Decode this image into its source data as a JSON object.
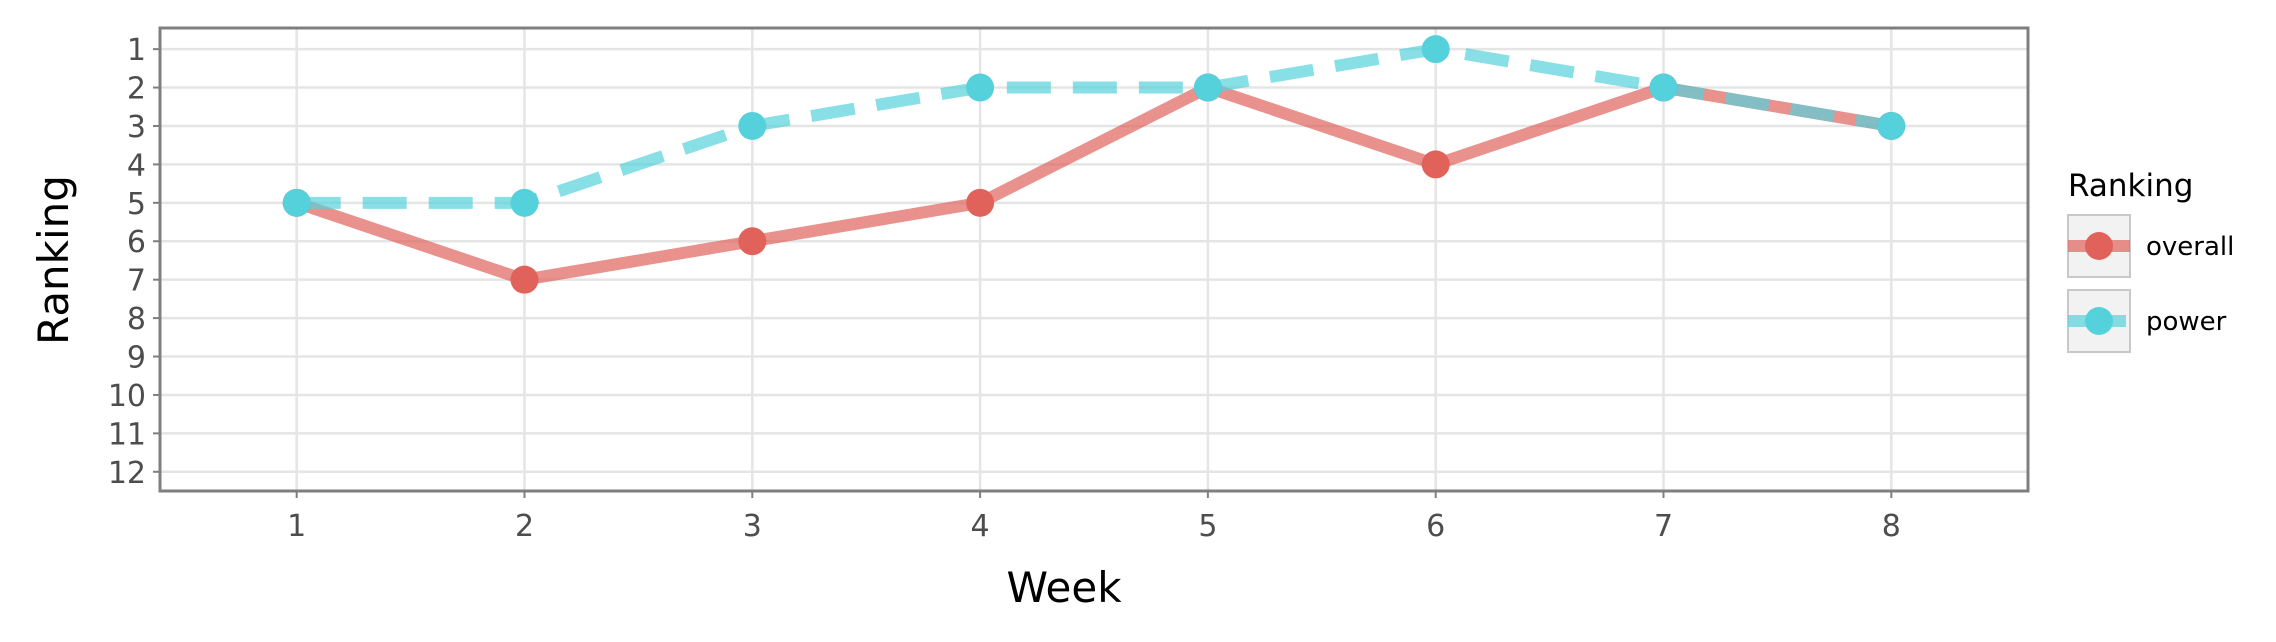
{
  "chart_data": {
    "type": "line",
    "xlabel": "Week",
    "ylabel": "Ranking",
    "x": [
      1,
      2,
      3,
      4,
      5,
      6,
      7,
      8
    ],
    "x_ticks": [
      1,
      2,
      3,
      4,
      5,
      6,
      7,
      8
    ],
    "xlim": [
      0.4,
      8.6
    ],
    "y_ticks": [
      1,
      2,
      3,
      4,
      5,
      6,
      7,
      8,
      9,
      10,
      11,
      12
    ],
    "ylim": [
      12.5,
      0.45
    ],
    "y_reversed": true,
    "grid": true,
    "legend": {
      "title": "Ranking",
      "position": "right"
    },
    "series": [
      {
        "name": "overall",
        "values": [
          5,
          7,
          6,
          5,
          2,
          4,
          2,
          3
        ],
        "color": "#E0625B",
        "line_style": "solid"
      },
      {
        "name": "power",
        "values": [
          5,
          5,
          3,
          2,
          2,
          1,
          2,
          3
        ],
        "color": "#55D1DB",
        "line_style": "dashed"
      }
    ]
  }
}
